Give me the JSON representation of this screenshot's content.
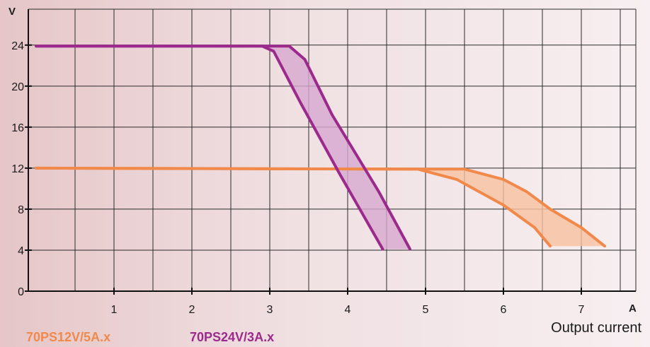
{
  "chart_data": {
    "type": "line",
    "xlabel": "Output current",
    "x_unit": "A",
    "y_unit": "V",
    "xlim": [
      -0.1,
      7.7
    ],
    "ylim": [
      0,
      27.5
    ],
    "x_ticks": [
      1,
      2,
      3,
      4,
      5,
      6,
      7
    ],
    "y_ticks": [
      0,
      4,
      8,
      12,
      16,
      20,
      24
    ],
    "grid": true,
    "legend_position": "bottom-left",
    "series": [
      {
        "name": "70PS12V/5A.x",
        "color": "#f0894a",
        "fill": "#f7c2a0",
        "curves": [
          [
            [
              0.0,
              12.0
            ],
            [
              4.6,
              11.9
            ],
            [
              4.9,
              11.9
            ],
            [
              5.4,
              10.9
            ],
            [
              6.0,
              8.4
            ],
            [
              6.4,
              6.2
            ],
            [
              6.6,
              4.4
            ]
          ],
          [
            [
              0.0,
              12.0
            ],
            [
              4.9,
              11.9
            ],
            [
              5.5,
              11.9
            ],
            [
              6.0,
              10.9
            ],
            [
              6.3,
              9.7
            ],
            [
              6.6,
              8.0
            ],
            [
              7.0,
              6.2
            ],
            [
              7.3,
              4.4
            ]
          ]
        ]
      },
      {
        "name": "70PS24V/3A.x",
        "color": "#9c2a8c",
        "fill": "#d7a7cf",
        "curves": [
          [
            [
              0.0,
              23.9
            ],
            [
              2.9,
              23.9
            ],
            [
              3.05,
              23.4
            ],
            [
              3.4,
              18.3
            ],
            [
              3.9,
              11.4
            ],
            [
              4.45,
              4.1
            ]
          ],
          [
            [
              0.0,
              23.9
            ],
            [
              3.25,
              23.9
            ],
            [
              3.45,
              22.6
            ],
            [
              3.8,
              17.2
            ],
            [
              4.4,
              9.7
            ],
            [
              4.8,
              4.1
            ]
          ]
        ]
      }
    ]
  }
}
